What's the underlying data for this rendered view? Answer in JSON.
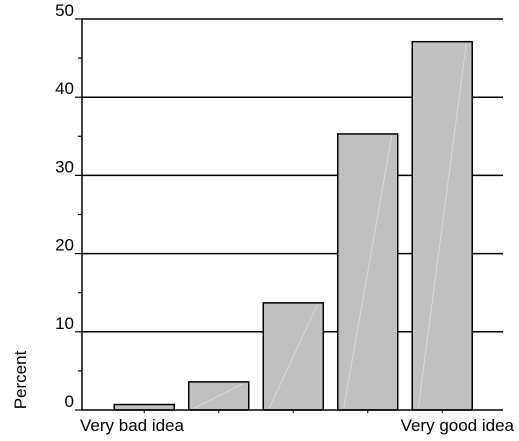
{
  "chart_data": {
    "type": "bar",
    "title": "",
    "xlabel": "",
    "ylabel": "Percent",
    "categories": [
      "Very bad idea",
      "",
      "",
      "",
      "Very good idea"
    ],
    "values": [
      0.7,
      3.6,
      13.7,
      35.3,
      47.1
    ],
    "ylim": [
      0,
      50
    ],
    "yticks": [
      0,
      10,
      20,
      30,
      40,
      50
    ],
    "grid": "horizontal",
    "legend": "none",
    "colors": {
      "bar_fill": "#c0c0c0",
      "bar_stroke": "#000000",
      "grid": "#000000",
      "bar_highlight": "#d9d9d9"
    }
  }
}
